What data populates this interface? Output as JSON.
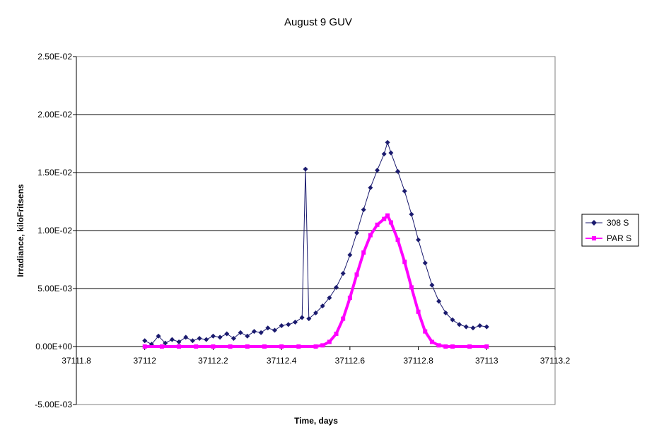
{
  "chart_data": {
    "type": "line",
    "title": "August 9 GUV",
    "xlabel": "Time, days",
    "ylabel": "Irradiance, kiloFritsens",
    "xlim": [
      37111.8,
      37113.2
    ],
    "ylim": [
      -0.005,
      0.025
    ],
    "x_ticks": [
      "37111.8",
      "37112",
      "37112.2",
      "37112.4",
      "37112.6",
      "37112.8",
      "37113",
      "37113.2"
    ],
    "y_ticks": [
      "-5.00E-03",
      "0.00E+00",
      "5.00E-03",
      "1.00E-02",
      "1.50E-02",
      "2.00E-02",
      "2.50E-02"
    ],
    "grid": "horizontal major gridlines",
    "legend_position": "right",
    "colors": {
      "308 S": "#1a1a6e",
      "PAR S": "#ff00ff"
    },
    "series": [
      {
        "name": "308 S",
        "marker": "diamond",
        "x": [
          37112.0,
          37112.02,
          37112.04,
          37112.06,
          37112.08,
          37112.1,
          37112.12,
          37112.14,
          37112.16,
          37112.18,
          37112.2,
          37112.22,
          37112.24,
          37112.26,
          37112.28,
          37112.3,
          37112.32,
          37112.34,
          37112.36,
          37112.38,
          37112.4,
          37112.42,
          37112.44,
          37112.46,
          37112.47,
          37112.48,
          37112.5,
          37112.52,
          37112.54,
          37112.56,
          37112.58,
          37112.6,
          37112.62,
          37112.64,
          37112.66,
          37112.68,
          37112.7,
          37112.71,
          37112.72,
          37112.74,
          37112.76,
          37112.78,
          37112.8,
          37112.82,
          37112.84,
          37112.86,
          37112.88,
          37112.9,
          37112.92,
          37112.94,
          37112.96,
          37112.98,
          37113.0
        ],
        "y": [
          0.0005,
          0.0002,
          0.0009,
          0.0003,
          0.0006,
          0.0004,
          0.0008,
          0.0005,
          0.0007,
          0.0006,
          0.0009,
          0.0008,
          0.0011,
          0.0007,
          0.0012,
          0.0009,
          0.0013,
          0.0012,
          0.0016,
          0.0014,
          0.0018,
          0.0019,
          0.0021,
          0.0025,
          0.0153,
          0.0024,
          0.0029,
          0.0035,
          0.0042,
          0.0051,
          0.0063,
          0.0079,
          0.0098,
          0.0118,
          0.0137,
          0.0152,
          0.0166,
          0.0176,
          0.0167,
          0.0151,
          0.0134,
          0.0114,
          0.0092,
          0.0072,
          0.0053,
          0.0039,
          0.0029,
          0.0023,
          0.0019,
          0.0017,
          0.0016,
          0.0018,
          0.0017
        ]
      },
      {
        "name": "PAR S",
        "marker": "square",
        "x": [
          37112.0,
          37112.05,
          37112.1,
          37112.15,
          37112.2,
          37112.25,
          37112.3,
          37112.35,
          37112.4,
          37112.45,
          37112.5,
          37112.52,
          37112.54,
          37112.56,
          37112.58,
          37112.6,
          37112.62,
          37112.64,
          37112.66,
          37112.68,
          37112.7,
          37112.71,
          37112.72,
          37112.74,
          37112.76,
          37112.78,
          37112.8,
          37112.82,
          37112.84,
          37112.86,
          37112.88,
          37112.9,
          37112.95,
          37113.0
        ],
        "y": [
          0.0,
          0.0,
          0.0,
          0.0,
          0.0,
          0.0,
          0.0,
          0.0,
          0.0,
          0.0,
          0.0,
          0.0001,
          0.0004,
          0.0011,
          0.0024,
          0.0042,
          0.0062,
          0.0081,
          0.0096,
          0.0105,
          0.011,
          0.0113,
          0.0107,
          0.0092,
          0.0073,
          0.0051,
          0.003,
          0.0013,
          0.0004,
          0.0001,
          0.0,
          0.0,
          0.0,
          0.0
        ]
      }
    ]
  }
}
